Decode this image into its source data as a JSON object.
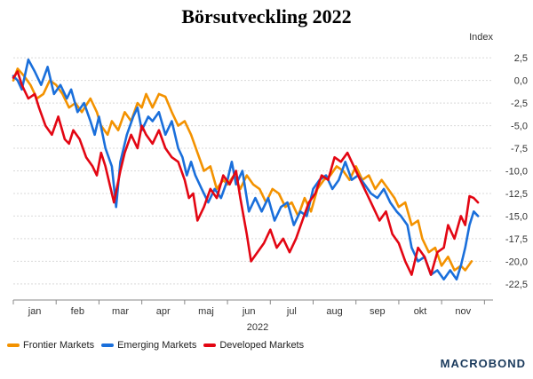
{
  "chart_data": {
    "type": "line",
    "title": "Börsutveckling 2022",
    "ylabel": "Index",
    "ylim": [
      -23.5,
      3.5
    ],
    "yticks": [
      2.5,
      0.0,
      -2.5,
      -5.0,
      -7.5,
      -10.0,
      -12.5,
      -15.0,
      -17.5,
      -20.0,
      -22.5
    ],
    "ytick_labels": [
      "2,5",
      "0,0",
      "-2,5",
      "-5,0",
      "-7,5",
      "-10,0",
      "-12,5",
      "-15,0",
      "-17,5",
      "-20,0",
      "-22,5"
    ],
    "x_months": [
      "jan",
      "feb",
      "mar",
      "apr",
      "maj",
      "jun",
      "jul",
      "aug",
      "sep",
      "okt",
      "nov"
    ],
    "x_year_label": "2022",
    "legend_position": "bottom",
    "grid": true,
    "series": [
      {
        "name": "Frontier Markets",
        "color": "#f39200",
        "points": [
          [
            0.0,
            0.0
          ],
          [
            0.1,
            1.3
          ],
          [
            0.25,
            0.5
          ],
          [
            0.4,
            -0.5
          ],
          [
            0.55,
            -2.0
          ],
          [
            0.7,
            -1.5
          ],
          [
            0.85,
            0.0
          ],
          [
            1.0,
            -0.5
          ],
          [
            1.15,
            -1.5
          ],
          [
            1.3,
            -3.0
          ],
          [
            1.45,
            -2.5
          ],
          [
            1.6,
            -3.5
          ],
          [
            1.8,
            -2.0
          ],
          [
            1.95,
            -3.5
          ],
          [
            2.05,
            -5.0
          ],
          [
            2.2,
            -6.0
          ],
          [
            2.3,
            -4.5
          ],
          [
            2.45,
            -5.5
          ],
          [
            2.6,
            -3.5
          ],
          [
            2.75,
            -4.5
          ],
          [
            2.9,
            -2.5
          ],
          [
            3.0,
            -3.0
          ],
          [
            3.1,
            -1.5
          ],
          [
            3.25,
            -3.0
          ],
          [
            3.4,
            -1.5
          ],
          [
            3.55,
            -1.8
          ],
          [
            3.7,
            -3.5
          ],
          [
            3.85,
            -5.0
          ],
          [
            4.0,
            -4.5
          ],
          [
            4.15,
            -6.0
          ],
          [
            4.3,
            -8.0
          ],
          [
            4.45,
            -10.0
          ],
          [
            4.6,
            -9.5
          ],
          [
            4.75,
            -12.0
          ],
          [
            4.9,
            -11.0
          ],
          [
            5.0,
            -11.5
          ],
          [
            5.15,
            -10.5
          ],
          [
            5.3,
            -12.0
          ],
          [
            5.45,
            -10.5
          ],
          [
            5.6,
            -11.5
          ],
          [
            5.75,
            -12.0
          ],
          [
            5.9,
            -13.5
          ],
          [
            6.05,
            -12.0
          ],
          [
            6.2,
            -12.5
          ],
          [
            6.35,
            -14.0
          ],
          [
            6.5,
            -13.5
          ],
          [
            6.65,
            -15.0
          ],
          [
            6.8,
            -13.0
          ],
          [
            6.95,
            -14.5
          ],
          [
            7.1,
            -12.0
          ],
          [
            7.25,
            -11.0
          ],
          [
            7.4,
            -10.5
          ],
          [
            7.55,
            -9.5
          ],
          [
            7.7,
            -10.0
          ],
          [
            7.85,
            -11.0
          ],
          [
            8.0,
            -9.5
          ],
          [
            8.15,
            -11.0
          ],
          [
            8.3,
            -10.5
          ],
          [
            8.45,
            -12.0
          ],
          [
            8.6,
            -11.0
          ],
          [
            8.75,
            -12.0
          ],
          [
            8.9,
            -13.0
          ],
          [
            9.0,
            -14.0
          ],
          [
            9.15,
            -13.5
          ],
          [
            9.3,
            -16.0
          ],
          [
            9.45,
            -15.5
          ],
          [
            9.55,
            -17.5
          ],
          [
            9.7,
            -19.0
          ],
          [
            9.85,
            -18.5
          ],
          [
            10.0,
            -20.5
          ],
          [
            10.15,
            -19.5
          ],
          [
            10.3,
            -21.0
          ],
          [
            10.45,
            -20.5
          ],
          [
            10.55,
            -21.0
          ],
          [
            10.7,
            -20.0
          ]
        ]
      },
      {
        "name": "Emerging Markets",
        "color": "#1a6fdb",
        "points": [
          [
            0.0,
            0.5
          ],
          [
            0.1,
            0.0
          ],
          [
            0.2,
            -1.0
          ],
          [
            0.35,
            2.3
          ],
          [
            0.5,
            1.0
          ],
          [
            0.65,
            -0.5
          ],
          [
            0.8,
            1.5
          ],
          [
            0.95,
            -1.5
          ],
          [
            1.1,
            -0.5
          ],
          [
            1.25,
            -2.0
          ],
          [
            1.35,
            -1.0
          ],
          [
            1.5,
            -3.5
          ],
          [
            1.65,
            -2.5
          ],
          [
            1.8,
            -4.5
          ],
          [
            1.9,
            -6.0
          ],
          [
            2.0,
            -4.0
          ],
          [
            2.15,
            -7.5
          ],
          [
            2.3,
            -9.5
          ],
          [
            2.4,
            -14.0
          ],
          [
            2.5,
            -9.0
          ],
          [
            2.65,
            -6.0
          ],
          [
            2.8,
            -4.0
          ],
          [
            2.9,
            -3.0
          ],
          [
            3.0,
            -5.5
          ],
          [
            3.15,
            -4.0
          ],
          [
            3.25,
            -4.5
          ],
          [
            3.4,
            -3.5
          ],
          [
            3.55,
            -6.0
          ],
          [
            3.7,
            -4.5
          ],
          [
            3.85,
            -7.5
          ],
          [
            3.95,
            -8.5
          ],
          [
            4.05,
            -10.5
          ],
          [
            4.15,
            -9.0
          ],
          [
            4.25,
            -10.5
          ],
          [
            4.4,
            -12.0
          ],
          [
            4.55,
            -13.5
          ],
          [
            4.7,
            -12.0
          ],
          [
            4.85,
            -13.0
          ],
          [
            5.0,
            -11.0
          ],
          [
            5.1,
            -9.0
          ],
          [
            5.2,
            -11.5
          ],
          [
            5.35,
            -10.0
          ],
          [
            5.5,
            -14.5
          ],
          [
            5.65,
            -13.0
          ],
          [
            5.8,
            -14.5
          ],
          [
            5.95,
            -13.0
          ],
          [
            6.1,
            -15.5
          ],
          [
            6.25,
            -14.0
          ],
          [
            6.4,
            -13.5
          ],
          [
            6.55,
            -16.0
          ],
          [
            6.7,
            -14.5
          ],
          [
            6.85,
            -15.0
          ],
          [
            7.0,
            -12.0
          ],
          [
            7.15,
            -11.0
          ],
          [
            7.3,
            -10.5
          ],
          [
            7.45,
            -12.0
          ],
          [
            7.6,
            -11.0
          ],
          [
            7.75,
            -9.0
          ],
          [
            7.9,
            -11.0
          ],
          [
            8.05,
            -10.5
          ],
          [
            8.2,
            -11.5
          ],
          [
            8.35,
            -12.5
          ],
          [
            8.5,
            -13.0
          ],
          [
            8.65,
            -12.0
          ],
          [
            8.8,
            -13.5
          ],
          [
            8.95,
            -14.5
          ],
          [
            9.05,
            -15.0
          ],
          [
            9.2,
            -16.0
          ],
          [
            9.3,
            -18.5
          ],
          [
            9.45,
            -20.0
          ],
          [
            9.6,
            -19.5
          ],
          [
            9.75,
            -21.5
          ],
          [
            9.9,
            -21.0
          ],
          [
            10.05,
            -22.0
          ],
          [
            10.2,
            -21.0
          ],
          [
            10.35,
            -22.0
          ],
          [
            10.45,
            -20.5
          ],
          [
            10.55,
            -18.5
          ],
          [
            10.65,
            -16.0
          ],
          [
            10.75,
            -14.5
          ],
          [
            10.85,
            -15.0
          ]
        ]
      },
      {
        "name": "Developed Markets",
        "color": "#e30613",
        "points": [
          [
            0.0,
            0.3
          ],
          [
            0.1,
            1.0
          ],
          [
            0.2,
            -0.5
          ],
          [
            0.35,
            -2.0
          ],
          [
            0.5,
            -1.5
          ],
          [
            0.6,
            -3.0
          ],
          [
            0.75,
            -5.0
          ],
          [
            0.9,
            -6.0
          ],
          [
            1.05,
            -4.0
          ],
          [
            1.2,
            -6.5
          ],
          [
            1.3,
            -7.0
          ],
          [
            1.4,
            -5.5
          ],
          [
            1.55,
            -6.5
          ],
          [
            1.7,
            -8.5
          ],
          [
            1.85,
            -9.5
          ],
          [
            1.95,
            -10.5
          ],
          [
            2.05,
            -8.0
          ],
          [
            2.15,
            -9.5
          ],
          [
            2.25,
            -11.5
          ],
          [
            2.35,
            -13.5
          ],
          [
            2.5,
            -10.0
          ],
          [
            2.6,
            -8.0
          ],
          [
            2.75,
            -6.0
          ],
          [
            2.9,
            -7.5
          ],
          [
            3.0,
            -5.0
          ],
          [
            3.1,
            -6.0
          ],
          [
            3.25,
            -7.0
          ],
          [
            3.4,
            -5.5
          ],
          [
            3.55,
            -7.5
          ],
          [
            3.7,
            -8.5
          ],
          [
            3.85,
            -9.0
          ],
          [
            4.0,
            -11.0
          ],
          [
            4.1,
            -13.0
          ],
          [
            4.2,
            -12.5
          ],
          [
            4.3,
            -15.5
          ],
          [
            4.45,
            -14.0
          ],
          [
            4.6,
            -12.0
          ],
          [
            4.75,
            -13.0
          ],
          [
            4.9,
            -10.5
          ],
          [
            5.05,
            -11.5
          ],
          [
            5.2,
            -10.0
          ],
          [
            5.3,
            -13.0
          ],
          [
            5.45,
            -17.0
          ],
          [
            5.55,
            -20.0
          ],
          [
            5.7,
            -19.0
          ],
          [
            5.85,
            -18.0
          ],
          [
            6.0,
            -16.5
          ],
          [
            6.15,
            -18.5
          ],
          [
            6.3,
            -17.5
          ],
          [
            6.45,
            -19.0
          ],
          [
            6.6,
            -17.5
          ],
          [
            6.75,
            -15.5
          ],
          [
            6.9,
            -13.5
          ],
          [
            7.05,
            -12.5
          ],
          [
            7.2,
            -10.5
          ],
          [
            7.35,
            -11.0
          ],
          [
            7.5,
            -8.5
          ],
          [
            7.65,
            -9.0
          ],
          [
            7.8,
            -8.0
          ],
          [
            7.95,
            -9.5
          ],
          [
            8.1,
            -11.0
          ],
          [
            8.25,
            -12.5
          ],
          [
            8.4,
            -14.0
          ],
          [
            8.55,
            -15.5
          ],
          [
            8.7,
            -14.5
          ],
          [
            8.85,
            -17.0
          ],
          [
            9.0,
            -18.0
          ],
          [
            9.15,
            -20.0
          ],
          [
            9.3,
            -21.5
          ],
          [
            9.45,
            -18.5
          ],
          [
            9.6,
            -19.5
          ],
          [
            9.75,
            -21.5
          ],
          [
            9.9,
            -19.0
          ],
          [
            10.05,
            -18.5
          ],
          [
            10.15,
            -16.0
          ],
          [
            10.3,
            -17.5
          ],
          [
            10.45,
            -15.0
          ],
          [
            10.55,
            -16.0
          ],
          [
            10.65,
            -12.8
          ],
          [
            10.75,
            -13.0
          ],
          [
            10.85,
            -13.5
          ]
        ]
      }
    ]
  },
  "logo_text": "MACROBOND"
}
